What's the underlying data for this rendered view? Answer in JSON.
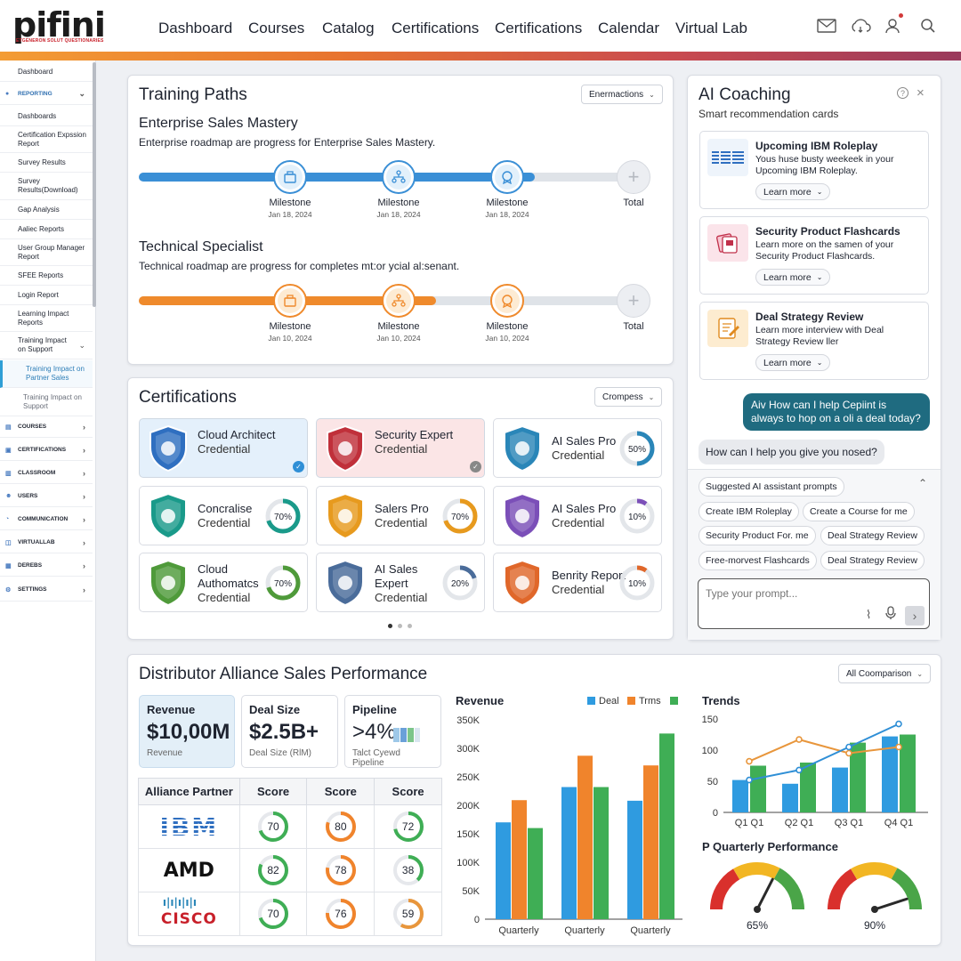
{
  "brand": {
    "logo_text": "pifini",
    "logo_sub": "ETGENERON SOLUT QUESTIONARIES",
    "accent": "#c8202a"
  },
  "topnav": {
    "items": [
      "Dashboard",
      "Courses",
      "Catalog",
      "Certifications",
      "Certifications",
      "Calendar",
      "Virtual Lab"
    ],
    "icons": [
      "mail-icon",
      "cloud-icon",
      "user-icon",
      "search-icon"
    ]
  },
  "sidebar": {
    "dashboard": "Dashboard",
    "reporting": "REPORTING",
    "reports": [
      "Dashboards",
      "Certification Expssion Report",
      "Survey Results",
      "Survey Results(Download)",
      "Gap Analysis",
      "Aaliec Reports",
      "User Group Manager Report",
      "SFEE Reports",
      "Login Report",
      "Learning Impact Reports",
      "Training Impact on Support"
    ],
    "sub_active": "Training Impact on Partner Sales",
    "sub_other": "Training Impact on Support",
    "sections": [
      "COURSES",
      "CERTIFICATIONS",
      "CLASSROOM",
      "USERS",
      "COMMUNICATION",
      "VIRTUALLAB",
      "DEREBS",
      "SETTINGS"
    ]
  },
  "training": {
    "title": "Training Paths",
    "filter": "Enermactions",
    "paths": [
      {
        "name": "Enterprise Sales Mastery",
        "desc": "Enterprise roadmap are progress for Enterprise Sales Mastery.",
        "color": "#3a8fd6",
        "progress": 0.8,
        "milestones": [
          {
            "label": "Milestone",
            "date": "Jan 18, 2024"
          },
          {
            "label": "Milestone",
            "date": "Jan 18, 2024"
          },
          {
            "label": "Milestone",
            "date": "Jan 18, 2024"
          }
        ],
        "total": "Total"
      },
      {
        "name": "Technical Specialist",
        "desc": "Technical roadmap are progress for completes mt:or ycial al:senant.",
        "color": "#ef8a2c",
        "progress": 0.6,
        "milestones": [
          {
            "label": "Milestone",
            "date": "Jan 10, 2024"
          },
          {
            "label": "Milestone",
            "date": "Jan 10, 2024"
          },
          {
            "label": "Milestone",
            "date": "Jan 10, 2024"
          }
        ],
        "total": "Total"
      }
    ]
  },
  "certs": {
    "title": "Certifications",
    "filter": "Crompess",
    "items": [
      {
        "name": "Cloud Architect",
        "sub": "Credential",
        "color": "#2f6fc0",
        "status": "check",
        "bg": "#e4f0fb"
      },
      {
        "name": "Security Expert",
        "sub": "Credential",
        "color": "#c0303a",
        "status": "check",
        "bg": "#fbe5e6"
      },
      {
        "name": "AI Sales Pro",
        "sub": "Credential",
        "color": "#2a86b8",
        "pct": "50%",
        "val": 50
      },
      {
        "name": "Concralise",
        "sub": "Credential",
        "color": "#1a9a8a",
        "pct": "70%",
        "val": 70
      },
      {
        "name": "Salers Pro",
        "sub": "Credential",
        "color": "#e79a1e",
        "pct": "70%",
        "val": 70
      },
      {
        "name": "AI Sales Pro",
        "sub": "Credential",
        "color": "#7b4fb8",
        "pct": "10%",
        "val": 10
      },
      {
        "name": "Cloud Authomatcs",
        "sub": "Credential",
        "color": "#4f9a3a",
        "pct": "70%",
        "val": 70
      },
      {
        "name": "AI Sales Expert",
        "sub": "Credential",
        "color": "#4a6c9a",
        "pct": "20%",
        "val": 20
      },
      {
        "name": "Benrity Report",
        "sub": "Credential",
        "color": "#e0672a",
        "pct": "10%",
        "val": 10
      }
    ]
  },
  "coach": {
    "title": "AI Coaching",
    "subtitle": "Smart recommendation cards",
    "cards": [
      {
        "title": "Upcoming IBM Roleplay",
        "desc": "Yous huse busty weekeek in your Upcoming IBM Roleplay.",
        "action": "Learn more",
        "icon": "ibm-logo-icon"
      },
      {
        "title": "Security Product Flashcards",
        "desc": "Learn more on the samen of your Security Product Flashcards.",
        "action": "Learn more",
        "icon": "flashcards-icon"
      },
      {
        "title": "Deal Strategy Review",
        "desc": "Learn more interview with Deal Strategy Review ller",
        "action": "Learn more",
        "icon": "notepad-icon"
      }
    ],
    "bot_msg": "Aiv How can I help Cepiint is always to hop on a oli a deal today?",
    "user_msg": "How can I help you give you nosed?",
    "prompts_title": "Suggested AI assistant prompts",
    "prompts": [
      "Create IBM Roleplay",
      "Create a Course for me",
      "Security Product For. me",
      "Deal Strategy Review",
      "Free-morvest Flashcards",
      "Deal Strategy Review"
    ],
    "input_placeholder": "Type your prompt..."
  },
  "perf": {
    "title": "Distributor Alliance Sales Performance",
    "filter": "All Coomparison",
    "kpis": [
      {
        "label": "Revenue",
        "value": "$10,00M",
        "sub": "Revenue"
      },
      {
        "label": "Deal Size",
        "value": "$2.5B+",
        "sub": "Deal Size (RlM)"
      },
      {
        "label": "Pipeline",
        "value": ">4%",
        "sub": "Talct Cyewd Pipeline"
      }
    ],
    "table": {
      "headers": [
        "Alliance Partner",
        "Score",
        "Score",
        "Score"
      ],
      "rows": [
        {
          "partner": "IBM",
          "scores": [
            70,
            80,
            72
          ]
        },
        {
          "partner": "AMD",
          "scores": [
            82,
            78,
            38
          ]
        },
        {
          "partner": "CISCO",
          "scores": [
            70,
            76,
            59
          ]
        }
      ]
    }
  },
  "chart_data": [
    {
      "type": "bar",
      "title": "Revenue",
      "categories": [
        "Quarterly",
        "Quarterly",
        "Quarterly"
      ],
      "series": [
        {
          "name": "Deal",
          "color": "#2f9be0",
          "values": [
            170000,
            232000,
            208000
          ]
        },
        {
          "name": "Trms",
          "color": "#f0842c",
          "values": [
            209000,
            287000,
            270000
          ]
        },
        {
          "name": "",
          "color": "#3fae55",
          "values": [
            160000,
            232000,
            326000
          ]
        }
      ],
      "ylim": [
        0,
        350000
      ],
      "yticks": [
        "0",
        "50K",
        "100K",
        "150K",
        "200K",
        "250K",
        "300K",
        "350K"
      ]
    },
    {
      "type": "bar+line",
      "title": "Trends",
      "categories": [
        "Q1 Q1",
        "Q2 Q1",
        "Q3 Q1",
        "Q4 Q1"
      ],
      "series": [
        {
          "name": "",
          "type": "bar",
          "color": "#2f9be0",
          "values": [
            52,
            46,
            72,
            122
          ]
        },
        {
          "name": "",
          "type": "bar",
          "color": "#3fae55",
          "values": [
            75,
            80,
            112,
            125
          ]
        },
        {
          "name": "",
          "type": "line",
          "color": "#e8963c",
          "values": [
            82,
            117,
            95,
            105
          ]
        },
        {
          "name": "",
          "type": "line",
          "color": "#2f8fd6",
          "values": [
            52,
            68,
            105,
            142
          ]
        }
      ],
      "ylim": [
        0,
        150
      ],
      "yticks": [
        "0",
        "50",
        "100",
        "150"
      ]
    },
    {
      "type": "gauge",
      "title": "P Quarterly Performance",
      "values": [
        65,
        90
      ],
      "labels": [
        "65%",
        "90%"
      ]
    }
  ]
}
